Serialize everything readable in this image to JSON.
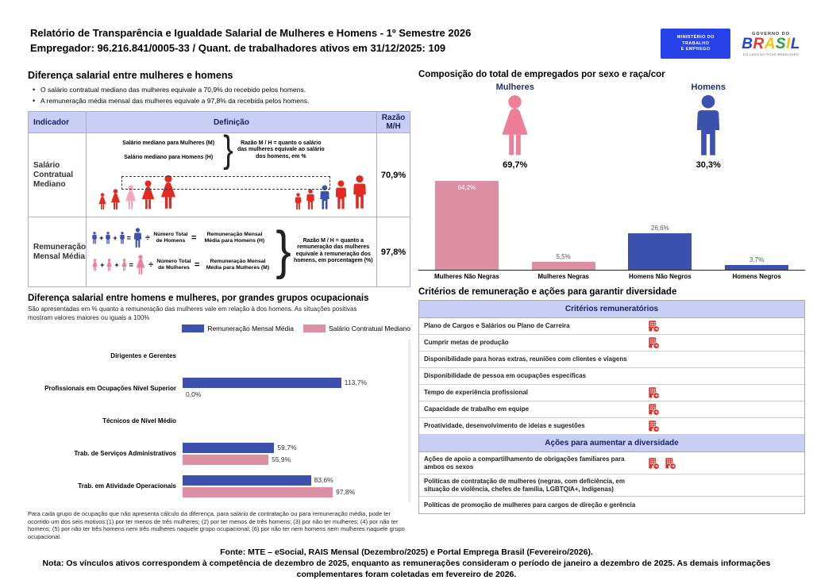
{
  "header": {
    "title": "Relatório de Transparência e Igualdade Salarial de Mulheres e Homens - 1º Semestre 2026",
    "employer": "Empregador: 96.216.841/0005-33 / Quant. de trabalhadores ativos em 31/12/2025: 109",
    "mte_logo": {
      "line1": "MINISTÉRIO DO",
      "line2": "TRABALHO",
      "line3": "E EMPREGO"
    },
    "gov_logo": {
      "top": "GOVERNO DO",
      "l1": "B",
      "l2": "R",
      "l3": "A",
      "l4": "S",
      "l5": "I",
      "l6": "L",
      "bottom": "DO LADO DO POVO BRASILEIRO"
    }
  },
  "ops": {
    "plus": "+",
    "equals": "=",
    "divide": "÷",
    "brace": "}"
  },
  "salary_gap": {
    "title": "Diferença salarial entre mulheres e homens",
    "bullet1": "O salário contratual mediano das mulheres equivale a 70,9% do recebido pelos homens.",
    "bullet2": "A remuneração média mensal das mulheres equivale a 97,8% da recebida pelos homens.",
    "table": {
      "col_indicator": "Indicador",
      "col_definition": "Definição",
      "col_ratio": "Razão M/H",
      "row1": {
        "indicator": "Salário Contratual Mediano",
        "label_women": "Salário mediano para Mulheres (M)",
        "label_men": "Salário mediano para Homens (H)",
        "note": "Razão M / H = quanto o salário das mulheres equivale ao salário dos homens, em %",
        "ratio": "70,9%"
      },
      "row2": {
        "indicator": "Remuneração Mensal Média",
        "men_total": "Número Total de Homens",
        "men_result": "Remuneração Mensal Média para Homens (H)",
        "women_total": "Número Total de Mulheres",
        "women_result": "Remuneração Mensal Média para Mulheres (M)",
        "note": "Razão M / H = quanto a remuneração das mulheres equivale à remuneração dos homens, em porcentagem (%)",
        "ratio": "97,8%"
      }
    }
  },
  "occupational": {
    "title": "Diferença salarial entre homens e mulheres, por grandes grupos ocupacionais",
    "subtitle": "São apresentadas em % quanto a remuneração das mulheres vale em relação à dos homens. As situações positivas mostram valores maiores ou iguais a 100%",
    "footnote": "Para cada grupo de ocupação que não apresenta cálculo da diferença, para salário de contratação ou para remuneração média, pode ter ocorrido um dos seis motivos:(1) por ter menos de três mulheres; (2) por ter menos de três homens; (3) por não ter mulheres; (4) por não ter homens; (5) por não ter três homens nem três mulheres naquele grupo ocupacional; (6) por não ter nem homens nem mulheres naquele grupo ocupacional."
  },
  "composition": {
    "title": "Composição do total de empregados por sexo e raça/cor",
    "women_label": "Mulheres",
    "women_pct": "69,7%",
    "men_label": "Homens",
    "men_pct": "30,3%"
  },
  "diversity": {
    "title": "Critérios de remuneração e ações para garantir diversidade",
    "criteria_header": "Critérios remuneratórios",
    "criteria": [
      {
        "label": "Plano de Cargos e Salários ou Plano de Carreira",
        "icons": 1
      },
      {
        "label": "Cumprir metas de produção",
        "icons": 1
      },
      {
        "label": "Disponibilidade para horas extras, reuniões com clientes e viagens",
        "icons": 0
      },
      {
        "label": "Disponibilidade de pessoa em ocupações específicas",
        "icons": 0
      },
      {
        "label": "Tempo de experiência profissional",
        "icons": 1
      },
      {
        "label": "Capacidade de trabalho em equipe",
        "icons": 1
      },
      {
        "label": "Proatividade, desenvolvimento de ideias e sugestões",
        "icons": 1
      }
    ],
    "actions_header": "Ações para aumentar a diversidade",
    "actions": [
      {
        "label": "Ações de apoio a compartilhamento de obrigações familiares para ambos os sexos",
        "icons": 2
      },
      {
        "label": "Políticas de contratação de mulheres (negras, com deficiência, em situação de violência, chefes de família, LGBTQIA+, Indígenas)",
        "icons": 0
      },
      {
        "label": "Políticas de promoção de mulheres para cargos de direção e gerência",
        "icons": 0
      }
    ]
  },
  "footer": {
    "fonte": "Fonte: MTE – eSocial, RAIS Mensal (Dezembro/2025) e Portal Emprega Brasil (Fevereiro/2026).",
    "nota": "Nota: Os vínculos ativos correspondem à competência de dezembro de 2025, enquanto as remunerações consideram o período de janeiro a dezembro de 2025. As demais informações complementares foram coletadas em fevereiro de 2026."
  },
  "colors": {
    "bar_pink": "#DD8FA3",
    "bar_blue": "#3D52AE",
    "icon_red": "#E12B20",
    "icon_pink_highlight": "#F4A7BB",
    "header_band": "#C9CEF5",
    "navy_text": "#23306B"
  },
  "chart_data": [
    {
      "type": "bar",
      "title": "Composição do total de empregados por sexo e raça/cor",
      "categories": [
        "Mulheres Não Negras",
        "Mulheres Negras",
        "Homens Não Negros",
        "Homens Negros"
      ],
      "values": [
        64.2,
        5.5,
        26.6,
        3.7
      ],
      "value_labels": [
        "64,2%",
        "5,5%",
        "26,6%",
        "3,7%"
      ],
      "colors": [
        "#DD8FA3",
        "#DD8FA3",
        "#3D52AE",
        "#3D52AE"
      ],
      "ylim": [
        0,
        70
      ],
      "group_totals": {
        "Mulheres": "69,7%",
        "Homens": "30,3%"
      },
      "legend_position": "none"
    },
    {
      "type": "bar",
      "orientation": "horizontal",
      "title": "Diferença salarial entre homens e mulheres, por grandes grupos ocupacionais",
      "categories": [
        "Dirigentes e Gerentes",
        "Profissionais em Ocupações Nível Superior",
        "Técnicos de Nível Médio",
        "Trab. de Serviços Administrativos",
        "Trab. em Atividade Operacionais"
      ],
      "series": [
        {
          "name": "Remuneração Mensal Média",
          "color": "#3D52AE",
          "values": [
            null,
            113.7,
            null,
            59.7,
            83.6
          ],
          "labels": [
            "",
            "113,7%",
            "",
            "59,7%",
            "83,6%"
          ]
        },
        {
          "name": "Salário Contratual Mediano",
          "color": "#DD8FA3",
          "values": [
            null,
            0.0,
            null,
            55.9,
            97.8
          ],
          "labels": [
            "",
            "0,0%",
            "",
            "55,9%",
            "97,8%"
          ]
        }
      ],
      "xlim": [
        0,
        120
      ],
      "legend_position": "top-right"
    }
  ]
}
